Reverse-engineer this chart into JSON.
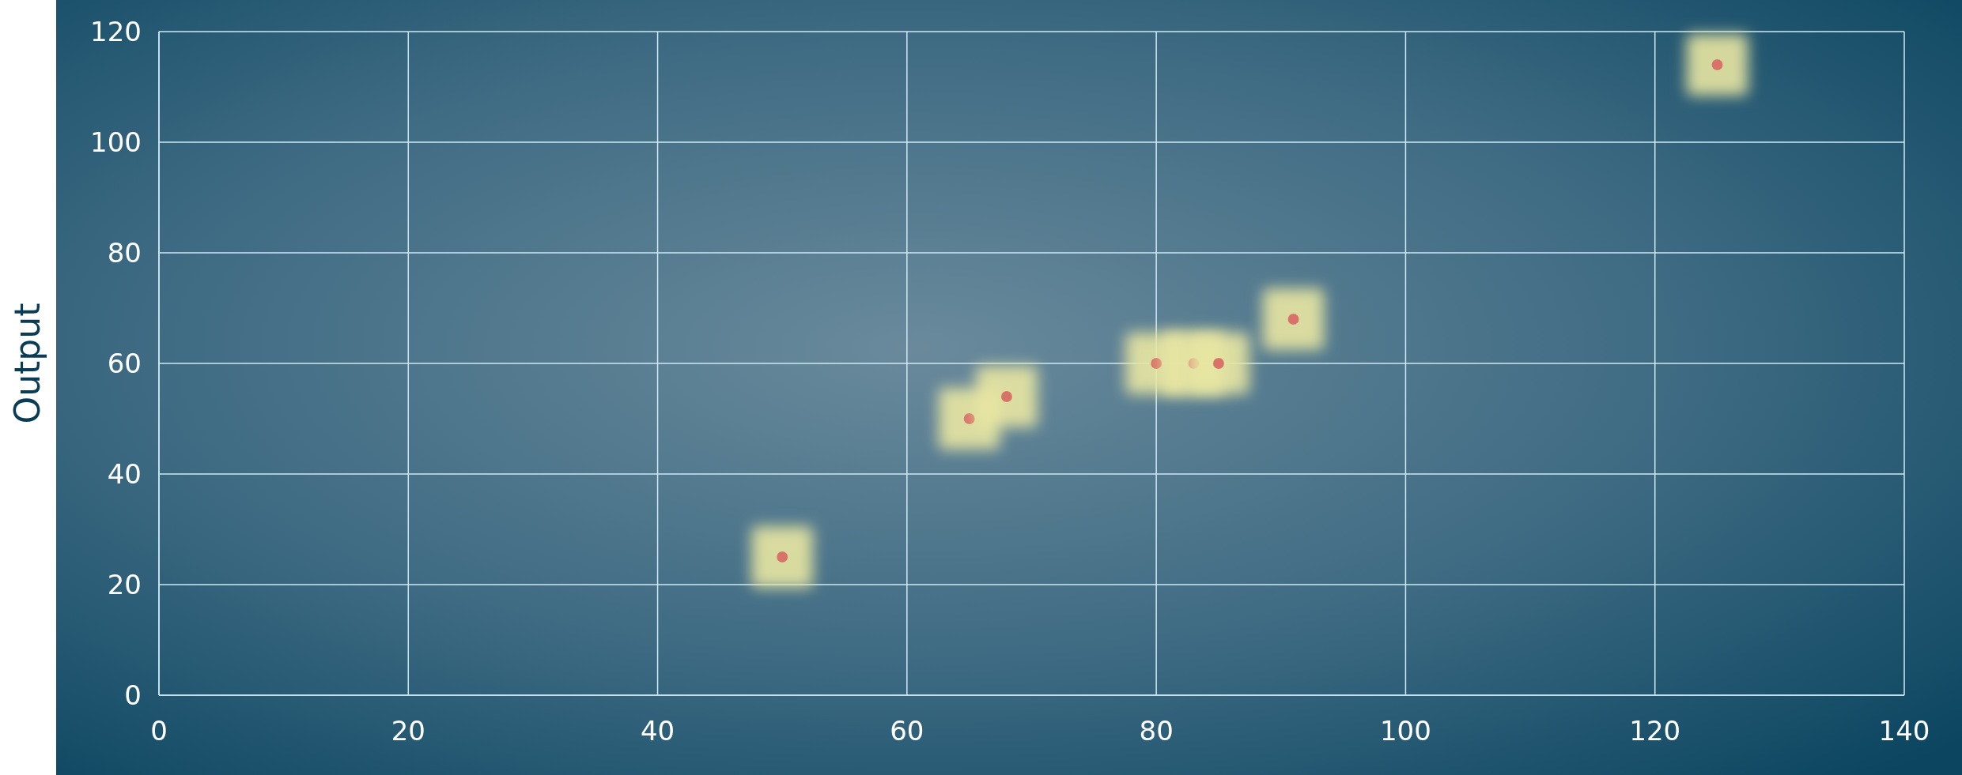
{
  "chart_data": {
    "type": "scatter",
    "ylabel": "Output",
    "marker": "circle",
    "grid": true,
    "x": [
      50,
      65,
      68,
      80,
      83,
      85,
      91,
      125
    ],
    "series": [
      {
        "color": "#d9736a",
        "values": [
          25,
          50,
          54,
          60,
          60,
          60,
          68,
          114
        ]
      }
    ],
    "xlim": [
      0,
      140
    ],
    "xticks": [
      0,
      20,
      40,
      60,
      80,
      100,
      120,
      140
    ],
    "ylim": [
      0,
      120
    ],
    "yticks": [
      0,
      20,
      40,
      60,
      80,
      100,
      120
    ]
  }
}
